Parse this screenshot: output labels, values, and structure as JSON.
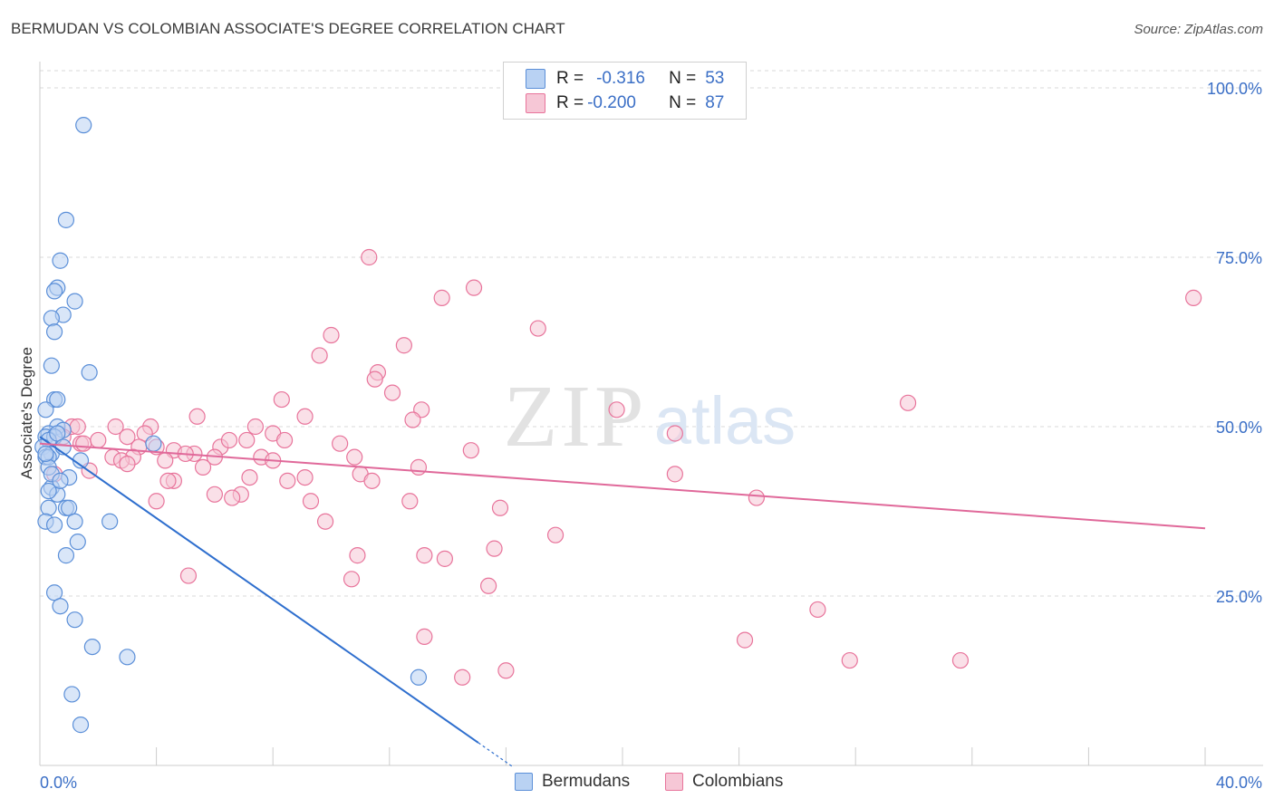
{
  "title": "BERMUDAN VS COLOMBIAN ASSOCIATE'S DEGREE CORRELATION CHART",
  "source": "Source: ZipAtlas.com",
  "watermark": {
    "zip": "ZIP",
    "atlas": "atlas"
  },
  "colors": {
    "blue": "#5b8fd8",
    "blue_fill": "#b9d2f3",
    "blue_line": "#2f6fce",
    "pink": "#e8749b",
    "pink_fill": "#f6c7d6",
    "pink_line": "#e0699a",
    "axis_label": "#3b6fc6",
    "grid": "#d9d9d9"
  },
  "legend": {
    "rows": [
      {
        "r_label": "R =",
        "r_value": "-0.316",
        "n_label": "N =",
        "n_value": "53"
      },
      {
        "r_label": "R =",
        "r_value": "-0.200",
        "n_label": "N =",
        "n_value": "87"
      }
    ]
  },
  "bottom_legend": {
    "blue": "Bermudans",
    "pink": "Colombians"
  },
  "chart_data": {
    "type": "scatter",
    "title": "BERMUDAN VS COLOMBIAN ASSOCIATE'S DEGREE CORRELATION CHART",
    "xlabel": "",
    "ylabel": "Associate's Degree",
    "xlim": [
      0,
      40
    ],
    "ylim": [
      0,
      102
    ],
    "x_tick_labels": [
      "0.0%",
      "40.0%"
    ],
    "y_tick_labels": [
      "100.0%",
      "75.0%",
      "50.0%",
      "25.0%"
    ],
    "y_ticks": [
      100,
      75,
      50,
      25
    ],
    "grid": true,
    "legend_position": "top-center",
    "series": [
      {
        "name": "Bermudans",
        "points": [
          [
            1.5,
            94.5
          ],
          [
            0.9,
            80.5
          ],
          [
            0.7,
            74.5
          ],
          [
            0.6,
            70.5
          ],
          [
            0.5,
            70.0
          ],
          [
            1.2,
            68.5
          ],
          [
            0.8,
            66.5
          ],
          [
            0.4,
            66.0
          ],
          [
            0.5,
            64.0
          ],
          [
            0.4,
            59.0
          ],
          [
            1.7,
            58.0
          ],
          [
            0.5,
            54.0
          ],
          [
            0.6,
            54.0
          ],
          [
            0.2,
            52.5
          ],
          [
            0.6,
            50.0
          ],
          [
            0.8,
            49.5
          ],
          [
            0.3,
            49.0
          ],
          [
            0.2,
            48.5
          ],
          [
            0.5,
            48.5
          ],
          [
            0.3,
            48.0
          ],
          [
            0.1,
            47.0
          ],
          [
            0.4,
            46.0
          ],
          [
            0.2,
            45.5
          ],
          [
            0.3,
            45.5
          ],
          [
            1.4,
            45.0
          ],
          [
            0.3,
            44.0
          ],
          [
            1.0,
            42.5
          ],
          [
            0.4,
            41.0
          ],
          [
            0.6,
            40.0
          ],
          [
            0.9,
            38.0
          ],
          [
            1.0,
            38.0
          ],
          [
            0.3,
            38.0
          ],
          [
            2.4,
            36.0
          ],
          [
            1.2,
            36.0
          ],
          [
            0.2,
            36.0
          ],
          [
            0.5,
            35.5
          ],
          [
            1.3,
            33.0
          ],
          [
            0.9,
            31.0
          ],
          [
            0.5,
            25.5
          ],
          [
            0.7,
            23.5
          ],
          [
            1.2,
            21.5
          ],
          [
            1.8,
            17.5
          ],
          [
            3.0,
            16.0
          ],
          [
            1.1,
            10.5
          ],
          [
            1.4,
            6.0
          ],
          [
            13.0,
            13.0
          ],
          [
            3.9,
            47.5
          ],
          [
            0.6,
            49.0
          ],
          [
            0.8,
            47.0
          ],
          [
            0.2,
            46.0
          ],
          [
            0.4,
            43.0
          ],
          [
            0.7,
            42.0
          ],
          [
            0.3,
            40.5
          ]
        ],
        "trend": {
          "x": [
            0,
            15
          ],
          "y": [
            48.5,
            3.5
          ]
        }
      },
      {
        "name": "Colombians",
        "points": [
          [
            11.3,
            75.0
          ],
          [
            14.9,
            70.5
          ],
          [
            13.8,
            69.0
          ],
          [
            39.6,
            69.0
          ],
          [
            17.1,
            64.5
          ],
          [
            10.0,
            63.5
          ],
          [
            12.5,
            62.0
          ],
          [
            9.6,
            60.5
          ],
          [
            11.6,
            58.0
          ],
          [
            11.5,
            57.0
          ],
          [
            12.1,
            55.0
          ],
          [
            8.3,
            54.0
          ],
          [
            29.8,
            53.5
          ],
          [
            13.1,
            52.5
          ],
          [
            19.8,
            52.5
          ],
          [
            9.1,
            51.5
          ],
          [
            5.4,
            51.5
          ],
          [
            3.8,
            50.0
          ],
          [
            7.4,
            50.0
          ],
          [
            2.6,
            50.0
          ],
          [
            1.1,
            50.0
          ],
          [
            1.3,
            50.0
          ],
          [
            3.6,
            49.0
          ],
          [
            8.0,
            49.0
          ],
          [
            21.8,
            49.0
          ],
          [
            3.0,
            48.5
          ],
          [
            7.1,
            48.0
          ],
          [
            8.4,
            48.0
          ],
          [
            10.3,
            47.5
          ],
          [
            1.4,
            47.5
          ],
          [
            1.5,
            47.5
          ],
          [
            6.2,
            47.0
          ],
          [
            3.4,
            47.0
          ],
          [
            4.0,
            47.0
          ],
          [
            14.8,
            46.5
          ],
          [
            4.6,
            46.5
          ],
          [
            5.3,
            46.0
          ],
          [
            5.0,
            46.0
          ],
          [
            2.5,
            45.5
          ],
          [
            6.0,
            45.5
          ],
          [
            3.2,
            45.5
          ],
          [
            7.6,
            45.5
          ],
          [
            10.8,
            45.5
          ],
          [
            8.0,
            45.0
          ],
          [
            2.8,
            45.0
          ],
          [
            4.3,
            45.0
          ],
          [
            3.0,
            44.5
          ],
          [
            5.6,
            44.0
          ],
          [
            13.0,
            44.0
          ],
          [
            1.7,
            43.5
          ],
          [
            11.0,
            43.0
          ],
          [
            21.8,
            43.0
          ],
          [
            9.1,
            42.5
          ],
          [
            7.2,
            42.5
          ],
          [
            11.4,
            42.0
          ],
          [
            4.6,
            42.0
          ],
          [
            8.5,
            42.0
          ],
          [
            4.4,
            42.0
          ],
          [
            6.9,
            40.0
          ],
          [
            6.0,
            40.0
          ],
          [
            6.6,
            39.5
          ],
          [
            24.6,
            39.5
          ],
          [
            12.7,
            39.0
          ],
          [
            4.0,
            39.0
          ],
          [
            9.3,
            39.0
          ],
          [
            15.8,
            38.0
          ],
          [
            9.8,
            36.0
          ],
          [
            17.7,
            34.0
          ],
          [
            15.6,
            32.0
          ],
          [
            10.9,
            31.0
          ],
          [
            13.2,
            31.0
          ],
          [
            13.9,
            30.5
          ],
          [
            5.1,
            28.0
          ],
          [
            10.7,
            27.5
          ],
          [
            15.4,
            26.5
          ],
          [
            26.7,
            23.0
          ],
          [
            13.2,
            19.0
          ],
          [
            24.2,
            18.5
          ],
          [
            27.8,
            15.5
          ],
          [
            31.6,
            15.5
          ],
          [
            16.0,
            14.0
          ],
          [
            14.5,
            13.0
          ],
          [
            0.5,
            43.0
          ],
          [
            0.8,
            48.5
          ],
          [
            2.0,
            48.0
          ],
          [
            6.5,
            48.0
          ],
          [
            12.8,
            51.0
          ]
        ],
        "trend": {
          "x": [
            0,
            40
          ],
          "y": [
            47.5,
            35.0
          ]
        }
      }
    ]
  }
}
